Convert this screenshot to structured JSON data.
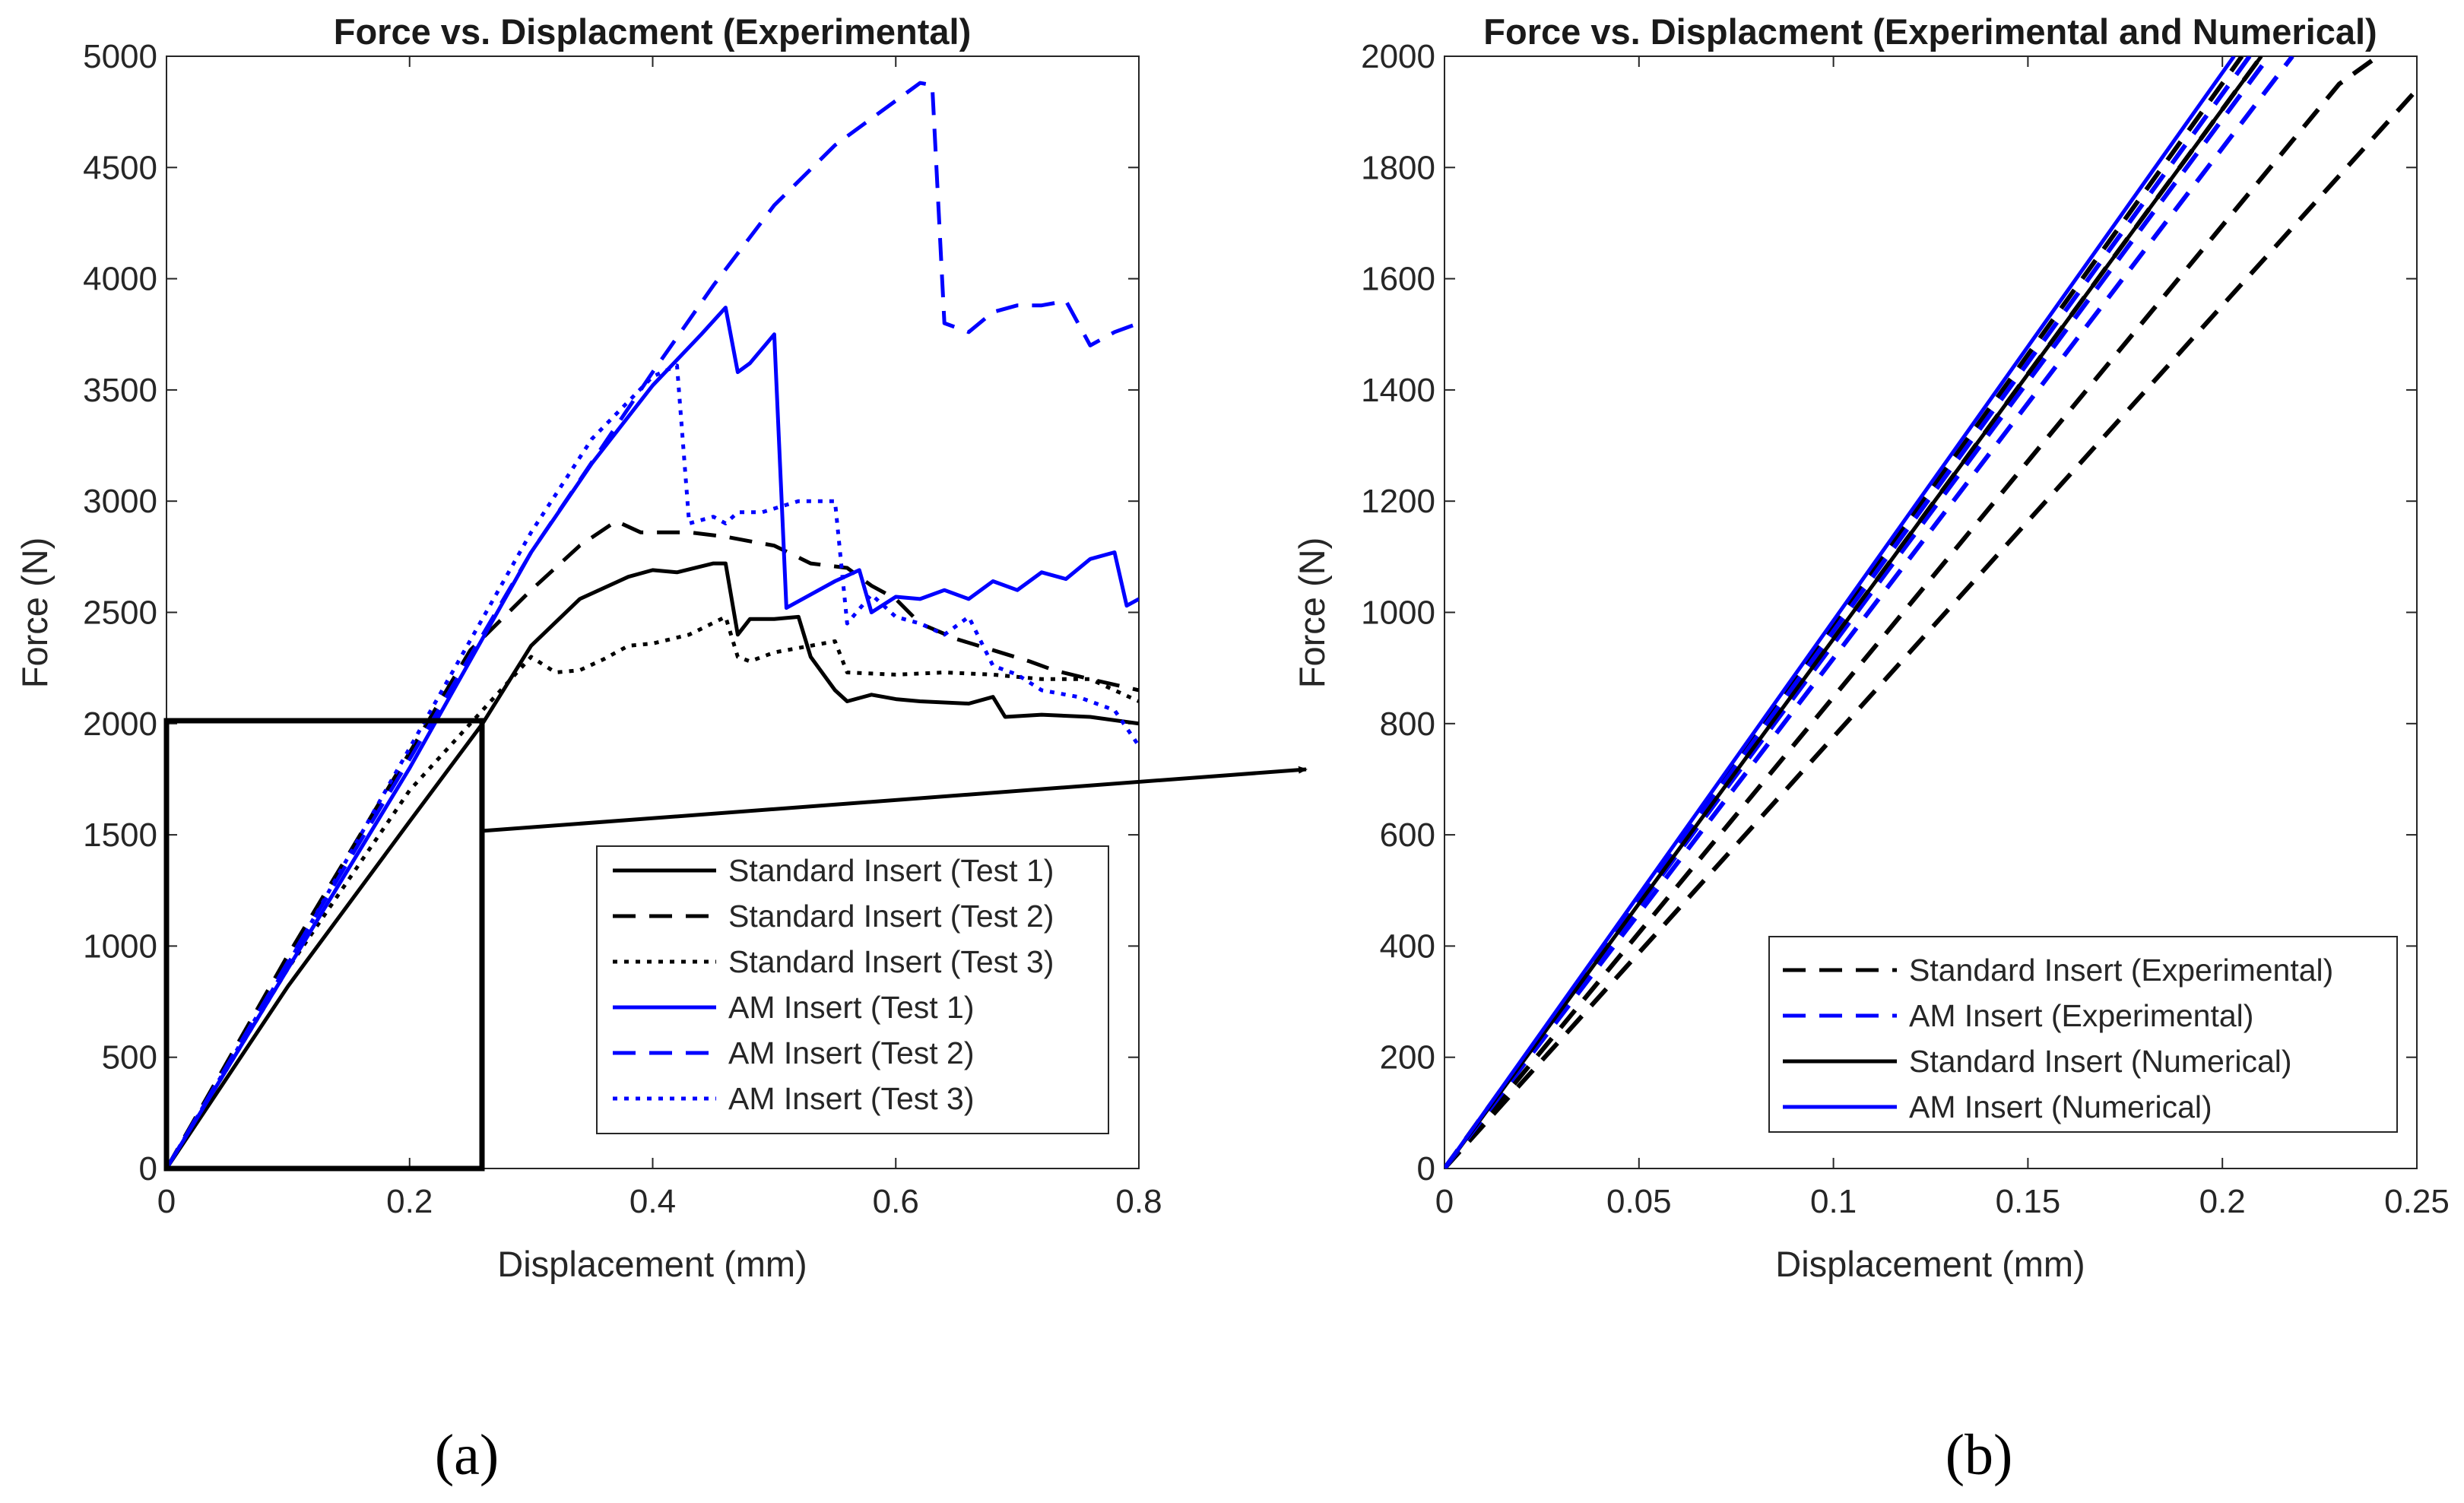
{
  "chart_data": [
    {
      "type": "line",
      "panel_label": "(a)",
      "title": "Force vs. Displacment (Experimental)",
      "xlabel": "Displacement (mm)",
      "ylabel": "Force (N)",
      "xlim": [
        0,
        0.8
      ],
      "ylim": [
        0,
        5000
      ],
      "xticks": [
        "0",
        "0.2",
        "0.4",
        "0.6",
        "0.8"
      ],
      "yticks": [
        "0",
        "500",
        "1000",
        "1500",
        "2000",
        "2500",
        "3000",
        "3500",
        "4000",
        "4500",
        "5000"
      ],
      "legend_position": "bottom-right",
      "zoom_box": {
        "x": [
          0,
          0.26
        ],
        "y": [
          0,
          2000
        ]
      },
      "series": [
        {
          "name": "Standard Insert (Test 1)",
          "color": "#000000",
          "dash": "solid",
          "points": [
            [
              0,
              0
            ],
            [
              0.1,
              820
            ],
            [
              0.2,
              1560
            ],
            [
              0.26,
              2000
            ],
            [
              0.3,
              2350
            ],
            [
              0.34,
              2560
            ],
            [
              0.38,
              2660
            ],
            [
              0.4,
              2690
            ],
            [
              0.42,
              2680
            ],
            [
              0.45,
              2720
            ],
            [
              0.46,
              2720
            ],
            [
              0.47,
              2400
            ],
            [
              0.48,
              2470
            ],
            [
              0.5,
              2470
            ],
            [
              0.52,
              2480
            ],
            [
              0.53,
              2300
            ],
            [
              0.55,
              2150
            ],
            [
              0.56,
              2100
            ],
            [
              0.58,
              2130
            ],
            [
              0.6,
              2110
            ],
            [
              0.62,
              2100
            ],
            [
              0.66,
              2090
            ],
            [
              0.68,
              2120
            ],
            [
              0.69,
              2030
            ],
            [
              0.72,
              2040
            ],
            [
              0.76,
              2030
            ],
            [
              0.8,
              2000
            ]
          ]
        },
        {
          "name": "Standard Insert (Test 2)",
          "color": "#000000",
          "dash": "dashed",
          "points": [
            [
              0,
              0
            ],
            [
              0.1,
              960
            ],
            [
              0.2,
              1870
            ],
            [
              0.25,
              2330
            ],
            [
              0.3,
              2600
            ],
            [
              0.34,
              2800
            ],
            [
              0.37,
              2910
            ],
            [
              0.39,
              2860
            ],
            [
              0.43,
              2860
            ],
            [
              0.46,
              2840
            ],
            [
              0.48,
              2820
            ],
            [
              0.5,
              2800
            ],
            [
              0.53,
              2720
            ],
            [
              0.56,
              2700
            ],
            [
              0.58,
              2620
            ],
            [
              0.6,
              2560
            ],
            [
              0.62,
              2450
            ],
            [
              0.65,
              2380
            ],
            [
              0.68,
              2330
            ],
            [
              0.71,
              2280
            ],
            [
              0.73,
              2240
            ],
            [
              0.76,
              2200
            ],
            [
              0.8,
              2150
            ]
          ]
        },
        {
          "name": "Standard Insert (Test 3)",
          "color": "#000000",
          "dash": "dotted",
          "points": [
            [
              0,
              0
            ],
            [
              0.1,
              900
            ],
            [
              0.2,
              1700
            ],
            [
              0.25,
              2000
            ],
            [
              0.28,
              2180
            ],
            [
              0.3,
              2300
            ],
            [
              0.32,
              2230
            ],
            [
              0.34,
              2240
            ],
            [
              0.36,
              2290
            ],
            [
              0.38,
              2350
            ],
            [
              0.4,
              2360
            ],
            [
              0.43,
              2400
            ],
            [
              0.46,
              2480
            ],
            [
              0.47,
              2300
            ],
            [
              0.48,
              2280
            ],
            [
              0.5,
              2320
            ],
            [
              0.53,
              2350
            ],
            [
              0.55,
              2370
            ],
            [
              0.56,
              2230
            ],
            [
              0.6,
              2220
            ],
            [
              0.64,
              2230
            ],
            [
              0.68,
              2220
            ],
            [
              0.72,
              2200
            ],
            [
              0.76,
              2200
            ],
            [
              0.8,
              2100
            ]
          ]
        },
        {
          "name": "AM Insert (Test 1)",
          "color": "#0000ff",
          "dash": "solid",
          "points": [
            [
              0,
              0
            ],
            [
              0.1,
              900
            ],
            [
              0.2,
              1800
            ],
            [
              0.3,
              2770
            ],
            [
              0.35,
              3170
            ],
            [
              0.4,
              3520
            ],
            [
              0.44,
              3750
            ],
            [
              0.46,
              3870
            ],
            [
              0.47,
              3580
            ],
            [
              0.48,
              3620
            ],
            [
              0.5,
              3750
            ],
            [
              0.51,
              2520
            ],
            [
              0.53,
              2580
            ],
            [
              0.55,
              2640
            ],
            [
              0.57,
              2690
            ],
            [
              0.58,
              2500
            ],
            [
              0.6,
              2570
            ],
            [
              0.62,
              2560
            ],
            [
              0.64,
              2600
            ],
            [
              0.66,
              2560
            ],
            [
              0.68,
              2640
            ],
            [
              0.7,
              2600
            ],
            [
              0.72,
              2680
            ],
            [
              0.74,
              2650
            ],
            [
              0.76,
              2740
            ],
            [
              0.78,
              2770
            ],
            [
              0.79,
              2530
            ],
            [
              0.8,
              2560
            ]
          ]
        },
        {
          "name": "AM Insert (Test 2)",
          "color": "#0000ff",
          "dash": "dashed",
          "points": [
            [
              0,
              0
            ],
            [
              0.1,
              930
            ],
            [
              0.2,
              1840
            ],
            [
              0.3,
              2770
            ],
            [
              0.4,
              3580
            ],
            [
              0.45,
              3970
            ],
            [
              0.5,
              4330
            ],
            [
              0.55,
              4600
            ],
            [
              0.6,
              4800
            ],
            [
              0.62,
              4880
            ],
            [
              0.63,
              4870
            ],
            [
              0.64,
              3800
            ],
            [
              0.66,
              3760
            ],
            [
              0.68,
              3850
            ],
            [
              0.7,
              3880
            ],
            [
              0.72,
              3880
            ],
            [
              0.74,
              3900
            ],
            [
              0.76,
              3700
            ],
            [
              0.78,
              3760
            ],
            [
              0.8,
              3800
            ]
          ]
        },
        {
          "name": "AM Insert (Test 3)",
          "color": "#0000ff",
          "dash": "dotted",
          "points": [
            [
              0,
              0
            ],
            [
              0.1,
              920
            ],
            [
              0.2,
              1890
            ],
            [
              0.3,
              2860
            ],
            [
              0.35,
              3280
            ],
            [
              0.4,
              3560
            ],
            [
              0.42,
              3610
            ],
            [
              0.43,
              2900
            ],
            [
              0.45,
              2930
            ],
            [
              0.46,
              2900
            ],
            [
              0.47,
              2950
            ],
            [
              0.49,
              2950
            ],
            [
              0.52,
              3000
            ],
            [
              0.55,
              3000
            ],
            [
              0.56,
              2450
            ],
            [
              0.58,
              2580
            ],
            [
              0.6,
              2480
            ],
            [
              0.62,
              2450
            ],
            [
              0.64,
              2400
            ],
            [
              0.66,
              2480
            ],
            [
              0.68,
              2260
            ],
            [
              0.7,
              2220
            ],
            [
              0.72,
              2150
            ],
            [
              0.75,
              2120
            ],
            [
              0.78,
              2060
            ],
            [
              0.8,
              1900
            ]
          ]
        }
      ]
    },
    {
      "type": "line",
      "panel_label": "(b)",
      "title": "Force vs. Displacment (Experimental and Numerical)",
      "xlabel": "Displacement (mm)",
      "ylabel": "Force (N)",
      "xlim": [
        0,
        0.25
      ],
      "ylim": [
        0,
        2000
      ],
      "xticks": [
        "0",
        "0.05",
        "0.1",
        "0.15",
        "0.2",
        "0.25"
      ],
      "yticks": [
        "0",
        "200",
        "400",
        "600",
        "800",
        "1000",
        "1200",
        "1400",
        "1600",
        "1800",
        "2000"
      ],
      "legend_position": "bottom-right",
      "series": [
        {
          "name": "Standard Insert (Experimental)",
          "color": "#000000",
          "dash": "dashed",
          "lines": [
            [
              [
                0,
                0
              ],
              [
                0.25,
                1940
              ]
            ],
            [
              [
                0,
                0
              ],
              [
                0.23,
                1950
              ],
              [
                0.24,
                2000
              ]
            ],
            [
              [
                0,
                0
              ],
              [
                0.205,
                2000
              ]
            ],
            [
              [
                0,
                0
              ],
              [
                0.21,
                2000
              ]
            ]
          ]
        },
        {
          "name": "AM Insert (Experimental)",
          "color": "#0000ff",
          "dash": "dashed",
          "lines": [
            [
              [
                0,
                0
              ],
              [
                0.207,
                2000
              ]
            ],
            [
              [
                0,
                0
              ],
              [
                0.212,
                2000
              ]
            ],
            [
              [
                0,
                0
              ],
              [
                0.218,
                2000
              ]
            ]
          ]
        },
        {
          "name": "Standard Insert (Numerical)",
          "color": "#000000",
          "dash": "solid",
          "lines": [
            [
              [
                0,
                0
              ],
              [
                0.21,
                2000
              ]
            ]
          ]
        },
        {
          "name": "AM Insert (Numerical)",
          "color": "#0000ff",
          "dash": "solid",
          "lines": [
            [
              [
                0,
                0
              ],
              [
                0.203,
                2000
              ]
            ]
          ]
        }
      ]
    }
  ]
}
